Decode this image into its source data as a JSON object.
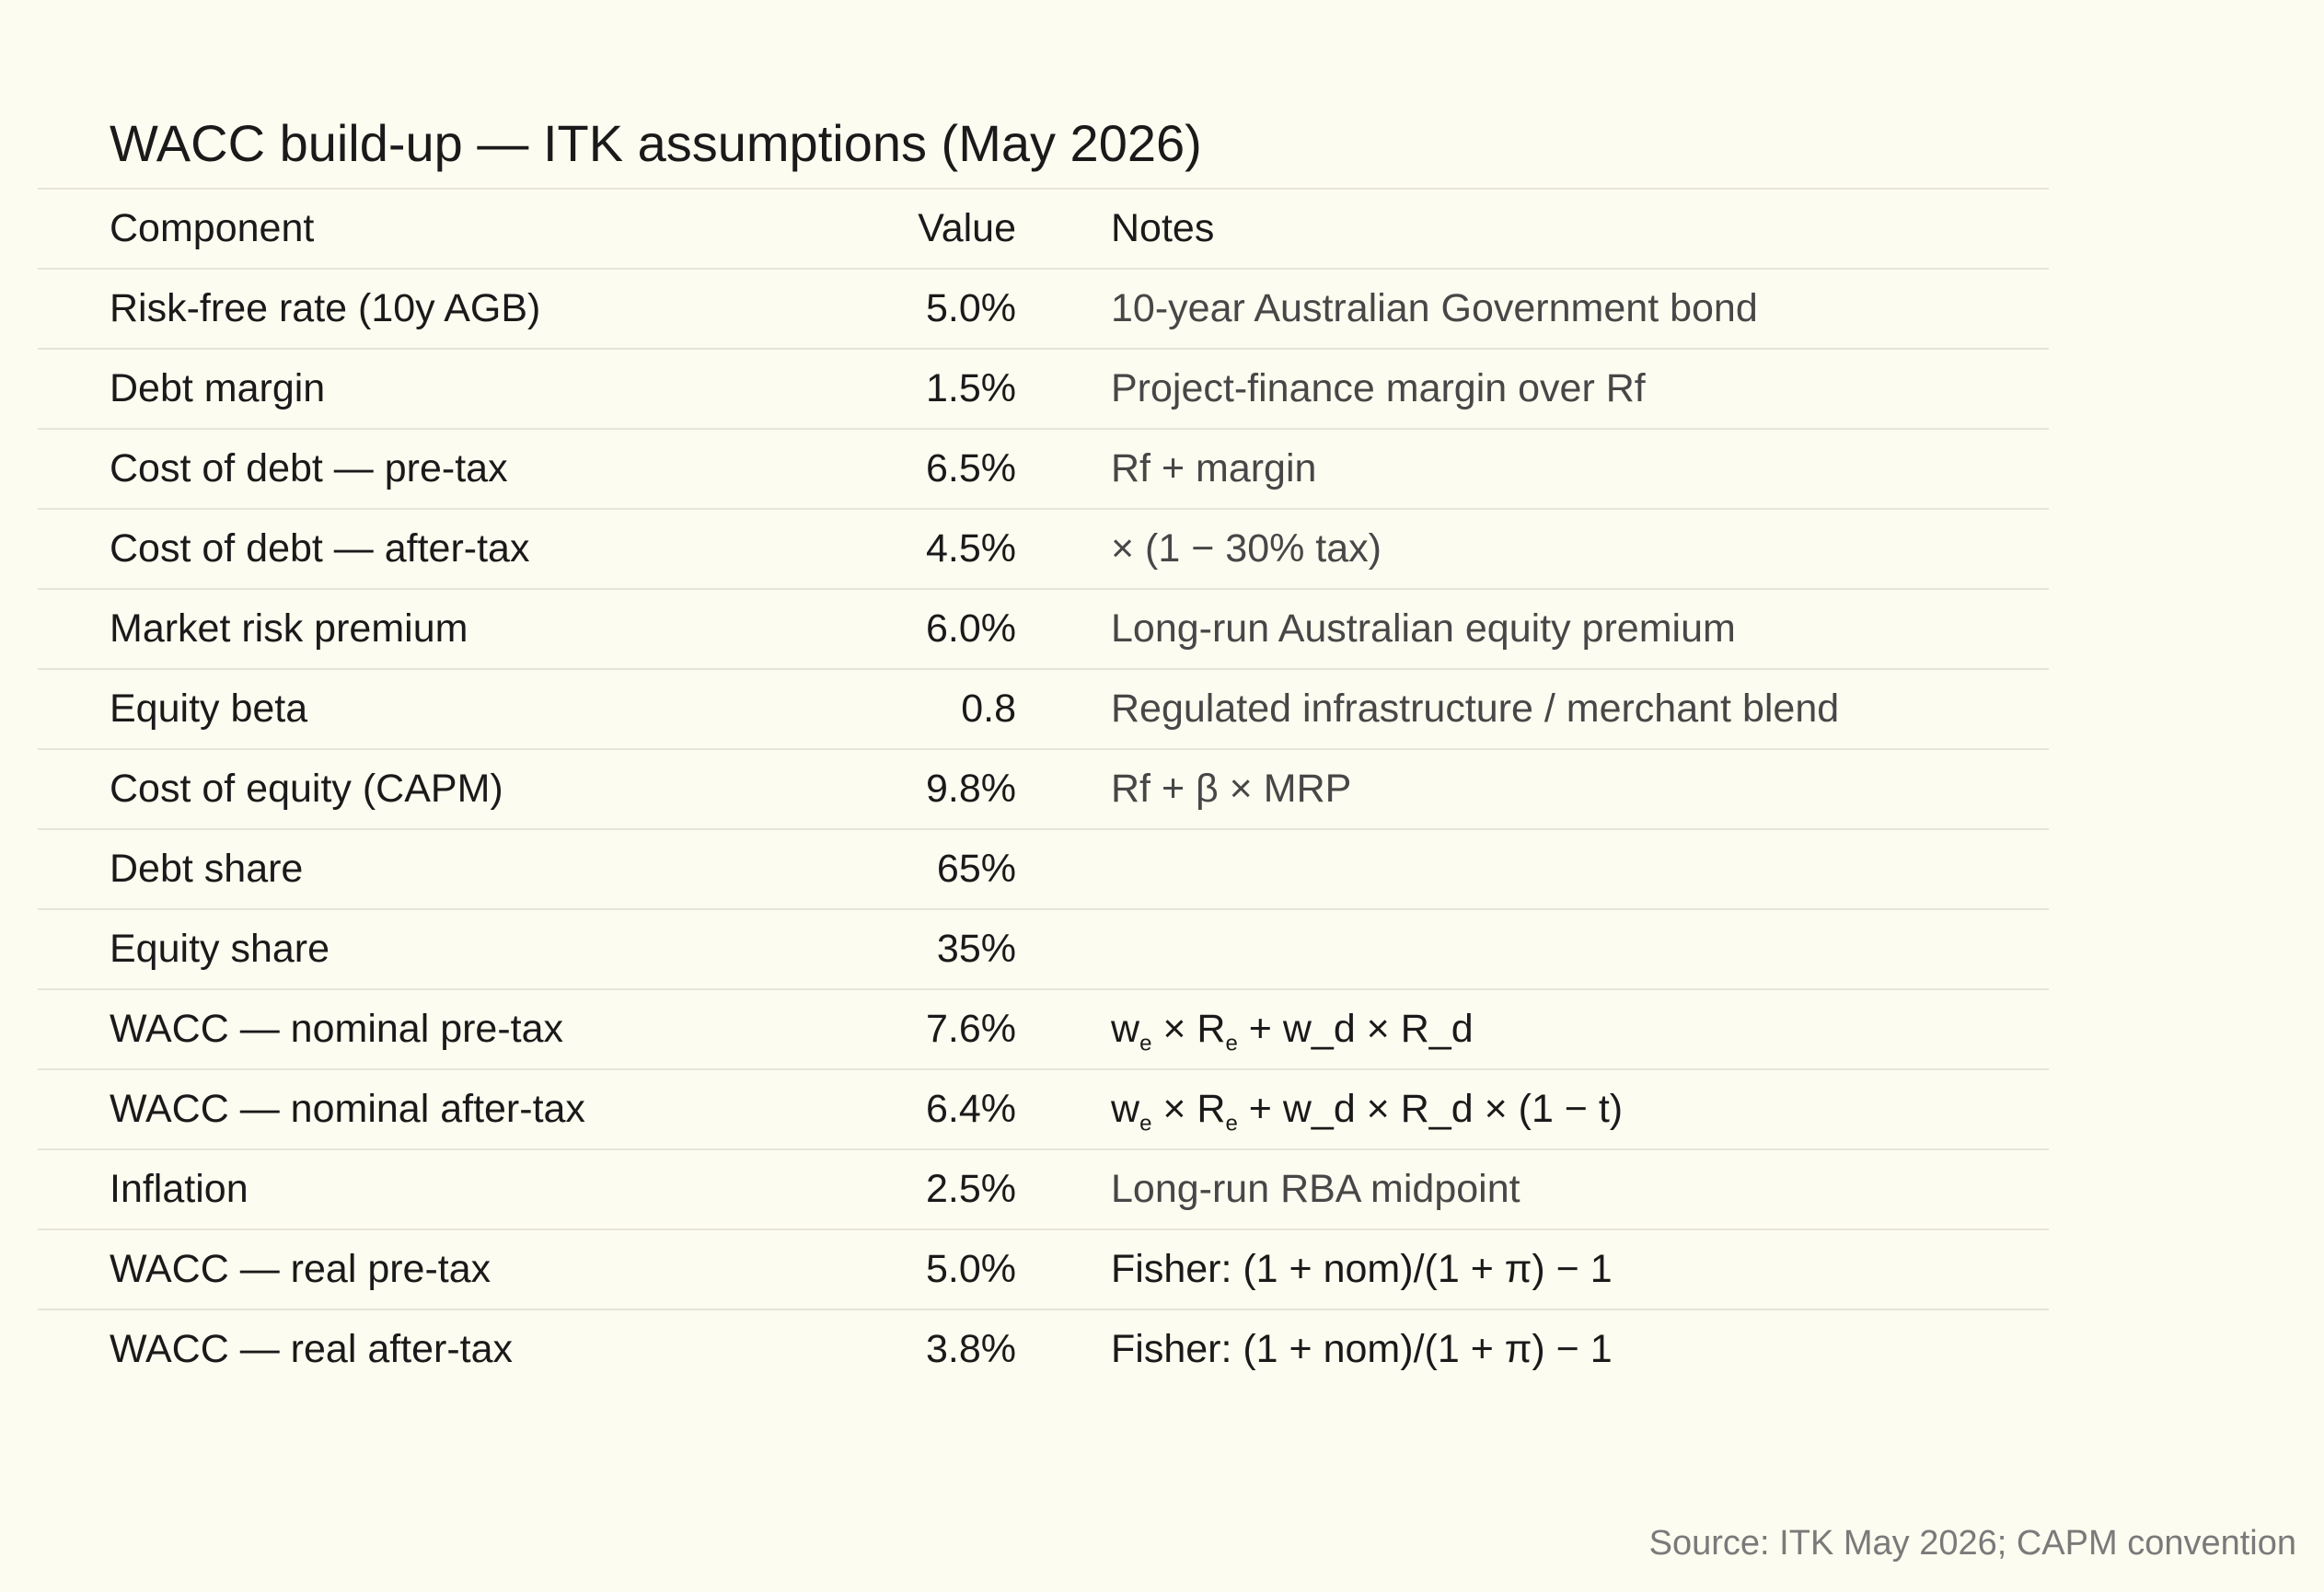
{
  "title": "WACC build-up — ITK assumptions (May 2026)",
  "table": {
    "headers": {
      "component": "Component",
      "value": "Value",
      "notes": "Notes"
    },
    "rows": [
      {
        "component": "Risk-free rate (10y AGB)",
        "value": "5.0%",
        "notes": "10-year Australian Government bond"
      },
      {
        "component": "Debt margin",
        "value": "1.5%",
        "notes": "Project-finance margin over Rf"
      },
      {
        "component": "Cost of debt — pre-tax",
        "value": "6.5%",
        "notes": "Rf + margin"
      },
      {
        "component": "Cost of debt — after-tax",
        "value": "4.5%",
        "notes": "× (1 − 30% tax)"
      },
      {
        "component": "Market risk premium",
        "value": "6.0%",
        "notes": "Long-run Australian equity premium"
      },
      {
        "component": "Equity beta",
        "value": "0.8",
        "notes": "Regulated infrastructure / merchant blend"
      },
      {
        "component": "Cost of equity (CAPM)",
        "value": "9.8%",
        "notes": "Rf + β × MRP"
      },
      {
        "component": "Debt share",
        "value": "65%",
        "notes": ""
      },
      {
        "component": "Equity share",
        "value": "35%",
        "notes": ""
      },
      {
        "component": "WACC — nominal pre-tax",
        "value": "7.6%",
        "notes": {
          "w": "w",
          "sub1": "e",
          "mid": " × R",
          "sub2": "e",
          "rest": " + w_d × R_d"
        }
      },
      {
        "component": "WACC — nominal after-tax",
        "value": "6.4%",
        "notes": {
          "w": "w",
          "sub1": "e",
          "mid": " × R",
          "sub2": "e",
          "rest": " + w_d × R_d × (1 − t)"
        }
      },
      {
        "component": "Inflation",
        "value": "2.5%",
        "notes": "Long-run RBA midpoint"
      },
      {
        "component": "WACC — real pre-tax",
        "value": "5.0%",
        "notes": "Fisher: (1 + nom)/(1 + π) − 1"
      },
      {
        "component": "WACC — real after-tax",
        "value": "3.8%",
        "notes": "Fisher: (1 + nom)/(1 + π) − 1"
      }
    ]
  },
  "source": "Source: ITK May 2026; CAPM convention"
}
